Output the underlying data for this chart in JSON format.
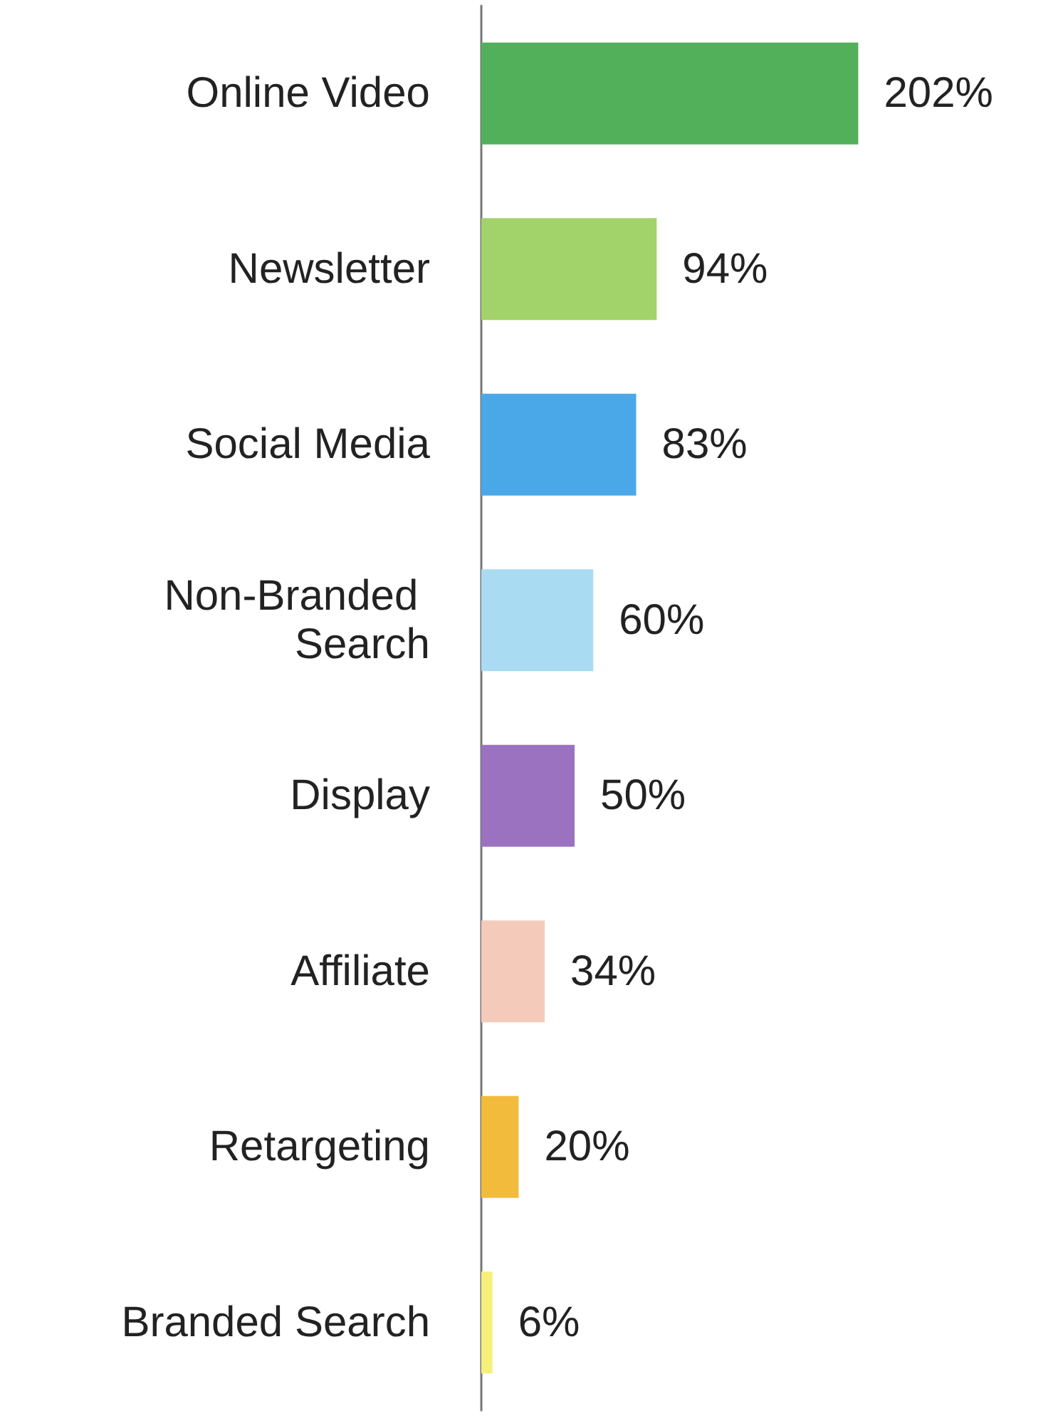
{
  "chart_data": {
    "type": "bar",
    "orientation": "horizontal",
    "categories": [
      "Online Video",
      "Newsletter",
      "Social Media",
      "Non-Branded Search",
      "Display",
      "Affiliate",
      "Retargeting",
      "Branded Search"
    ],
    "values": [
      202,
      94,
      83,
      60,
      50,
      34,
      20,
      6
    ],
    "value_labels": [
      "202%",
      "94%",
      "83%",
      "60%",
      "50%",
      "34%",
      "20%",
      "6%"
    ],
    "colors": [
      "#52b05a",
      "#a2d26a",
      "#4aa8e8",
      "#a9dcf2",
      "#9b72bf",
      "#f4cbbb",
      "#f2bb3c",
      "#f6f07a"
    ]
  }
}
